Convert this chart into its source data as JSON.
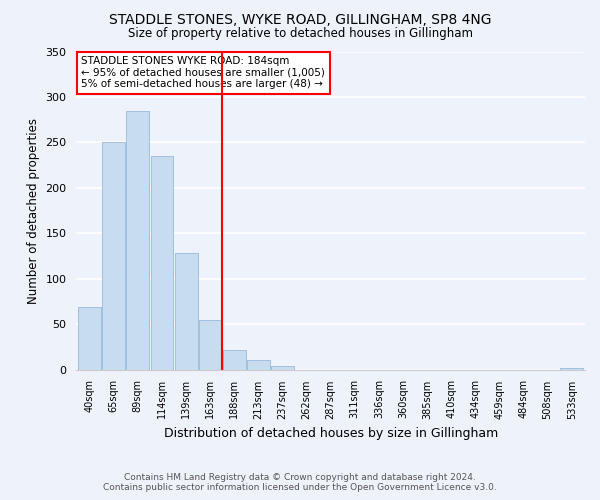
{
  "title": "STADDLE STONES, WYKE ROAD, GILLINGHAM, SP8 4NG",
  "subtitle": "Size of property relative to detached houses in Gillingham",
  "xlabel": "Distribution of detached houses by size in Gillingham",
  "ylabel": "Number of detached properties",
  "bar_color": "#c8dcf0",
  "bar_edge_color": "#a0c0e0",
  "background_color": "#eef2fa",
  "vline_color": "red",
  "annotation_title": "STADDLE STONES WYKE ROAD: 184sqm",
  "annotation_line1": "← 95% of detached houses are smaller (1,005)",
  "annotation_line2": "5% of semi-detached houses are larger (48) →",
  "bin_labels": [
    "40sqm",
    "65sqm",
    "89sqm",
    "114sqm",
    "139sqm",
    "163sqm",
    "188sqm",
    "213sqm",
    "237sqm",
    "262sqm",
    "287sqm",
    "311sqm",
    "336sqm",
    "360sqm",
    "385sqm",
    "410sqm",
    "434sqm",
    "459sqm",
    "484sqm",
    "508sqm",
    "533sqm"
  ],
  "bar_heights": [
    69,
    250,
    285,
    235,
    128,
    54,
    22,
    10,
    4,
    0,
    0,
    0,
    0,
    0,
    0,
    0,
    0,
    0,
    0,
    0,
    2
  ],
  "vline_index": 6,
  "ylim": [
    0,
    350
  ],
  "yticks": [
    0,
    50,
    100,
    150,
    200,
    250,
    300,
    350
  ],
  "footer1": "Contains HM Land Registry data © Crown copyright and database right 2024.",
  "footer2": "Contains public sector information licensed under the Open Government Licence v3.0."
}
